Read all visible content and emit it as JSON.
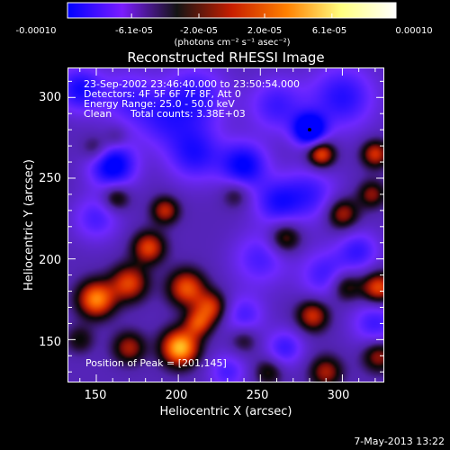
{
  "chart_data": {
    "type": "heatmap",
    "title": "Reconstructed RHESSI Image",
    "xlabel": "Heliocentric X (arcsec)",
    "ylabel": "Heliocentric Y (arcsec)",
    "xlim": [
      133,
      325
    ],
    "ylim": [
      124,
      318
    ],
    "xticks": [
      150,
      200,
      250,
      300
    ],
    "yticks": [
      150,
      200,
      250,
      300
    ],
    "colorbar": {
      "range": [
        -0.0001,
        0.0001
      ],
      "tick_values": [
        -0.0001,
        -6.1e-05,
        -2e-05,
        2e-05,
        6.1e-05,
        0.0001
      ],
      "tick_labels": [
        "-0.00010",
        "-6.1e-05",
        "-2.0e-05",
        "2.0e-05",
        "6.1e-05",
        "0.00010"
      ],
      "unit_label": "(photons cm⁻² s⁻¹ asec⁻²)",
      "colors": [
        "#0000ff",
        "#7b1cff",
        "#141414",
        "#c81e00",
        "#ff8000",
        "#ffff80",
        "#ffffff"
      ]
    },
    "annotations": {
      "time_range": "23-Sep-2002 23:46:40.000 to 23:50:54.000",
      "detectors": "Detectors: 4F 5F 6F 7F 8F, Att 0",
      "energy": "Energy Range: 25.0 - 50.0 keV",
      "method": "Clean",
      "counts": "Total counts: 3.38E+03",
      "peak": "Position of Peak = [201,145]"
    },
    "peak": [
      201,
      145
    ],
    "blobs": [
      {
        "x": 280,
        "y": 280,
        "a": -1.0,
        "s": 7
      },
      {
        "x": 240,
        "y": 258,
        "a": -0.7,
        "s": 10
      },
      {
        "x": 160,
        "y": 258,
        "a": -0.8,
        "s": 10
      },
      {
        "x": 140,
        "y": 305,
        "a": -0.6,
        "s": 10
      },
      {
        "x": 210,
        "y": 300,
        "a": -0.5,
        "s": 14
      },
      {
        "x": 300,
        "y": 300,
        "a": -0.55,
        "s": 14
      },
      {
        "x": 260,
        "y": 295,
        "a": -0.45,
        "s": 12
      },
      {
        "x": 210,
        "y": 265,
        "a": -0.55,
        "s": 12
      },
      {
        "x": 190,
        "y": 285,
        "a": -0.35,
        "s": 12
      },
      {
        "x": 280,
        "y": 240,
        "a": -0.45,
        "s": 12
      },
      {
        "x": 260,
        "y": 235,
        "a": -0.5,
        "s": 10
      },
      {
        "x": 250,
        "y": 200,
        "a": -0.4,
        "s": 12
      },
      {
        "x": 290,
        "y": 190,
        "a": -0.45,
        "s": 11
      },
      {
        "x": 310,
        "y": 205,
        "a": -0.45,
        "s": 9
      },
      {
        "x": 320,
        "y": 160,
        "a": -0.45,
        "s": 10
      },
      {
        "x": 240,
        "y": 165,
        "a": -0.4,
        "s": 9
      },
      {
        "x": 265,
        "y": 145,
        "a": -0.45,
        "s": 8
      },
      {
        "x": 150,
        "y": 225,
        "a": -0.4,
        "s": 10
      },
      {
        "x": 230,
        "y": 130,
        "a": -0.4,
        "s": 8
      },
      {
        "x": 170,
        "y": 300,
        "a": -0.4,
        "s": 12
      },
      {
        "x": 201,
        "y": 145,
        "a": 1.0,
        "s": 8
      },
      {
        "x": 170,
        "y": 145,
        "a": 0.5,
        "s": 7
      },
      {
        "x": 150,
        "y": 175,
        "a": 0.85,
        "s": 8
      },
      {
        "x": 170,
        "y": 185,
        "a": 0.65,
        "s": 8
      },
      {
        "x": 205,
        "y": 182,
        "a": 0.7,
        "s": 8
      },
      {
        "x": 220,
        "y": 170,
        "a": 0.6,
        "s": 7
      },
      {
        "x": 212,
        "y": 160,
        "a": 0.55,
        "s": 6
      },
      {
        "x": 182,
        "y": 207,
        "a": 0.65,
        "s": 7
      },
      {
        "x": 192,
        "y": 230,
        "a": 0.55,
        "s": 6
      },
      {
        "x": 162,
        "y": 238,
        "a": 0.45,
        "s": 6
      },
      {
        "x": 282,
        "y": 165,
        "a": 0.6,
        "s": 7
      },
      {
        "x": 302,
        "y": 183,
        "a": 0.5,
        "s": 7
      },
      {
        "x": 322,
        "y": 182,
        "a": 0.7,
        "s": 7
      },
      {
        "x": 265,
        "y": 213,
        "a": 0.5,
        "s": 7
      },
      {
        "x": 300,
        "y": 228,
        "a": 0.55,
        "s": 7
      },
      {
        "x": 318,
        "y": 240,
        "a": 0.45,
        "s": 6
      },
      {
        "x": 287,
        "y": 265,
        "a": 0.75,
        "s": 6
      },
      {
        "x": 320,
        "y": 265,
        "a": 0.6,
        "s": 6
      },
      {
        "x": 150,
        "y": 268,
        "a": 0.35,
        "s": 6
      },
      {
        "x": 235,
        "y": 240,
        "a": 0.3,
        "s": 6
      },
      {
        "x": 162,
        "y": 275,
        "a": 0.25,
        "s": 5
      },
      {
        "x": 322,
        "y": 140,
        "a": 0.5,
        "s": 7
      },
      {
        "x": 290,
        "y": 130,
        "a": 0.5,
        "s": 7
      },
      {
        "x": 255,
        "y": 130,
        "a": 0.35,
        "s": 6
      },
      {
        "x": 140,
        "y": 150,
        "a": 0.3,
        "s": 6
      },
      {
        "x": 240,
        "y": 150,
        "a": 0.3,
        "s": 6
      }
    ]
  },
  "footer": {
    "timestamp": "7-May-2013 13:22"
  }
}
